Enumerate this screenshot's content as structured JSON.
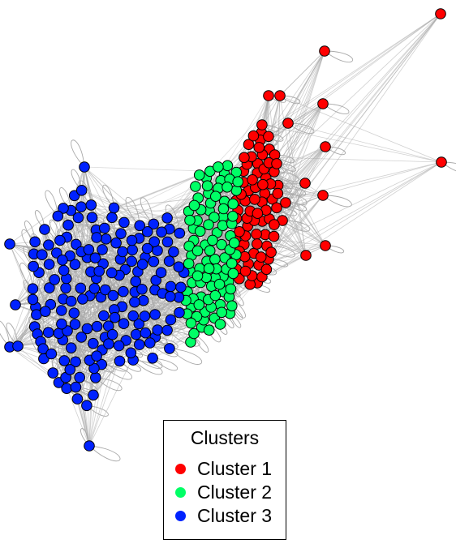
{
  "legend": {
    "title": "Clusters",
    "entries": [
      {
        "label": "Cluster 1",
        "color": "#ff0000"
      },
      {
        "label": "Cluster 2",
        "color": "#00ff66"
      },
      {
        "label": "Cluster 3",
        "color": "#0022ff"
      }
    ]
  },
  "graph": {
    "node_outline_color": "#000000",
    "edge_color": "#aaaaaa",
    "clusters": [
      {
        "name": "Cluster 1",
        "color": "#ff0000"
      },
      {
        "name": "Cluster 2",
        "color": "#00ff66"
      },
      {
        "name": "Cluster 3",
        "color": "#0022ff"
      }
    ]
  }
}
